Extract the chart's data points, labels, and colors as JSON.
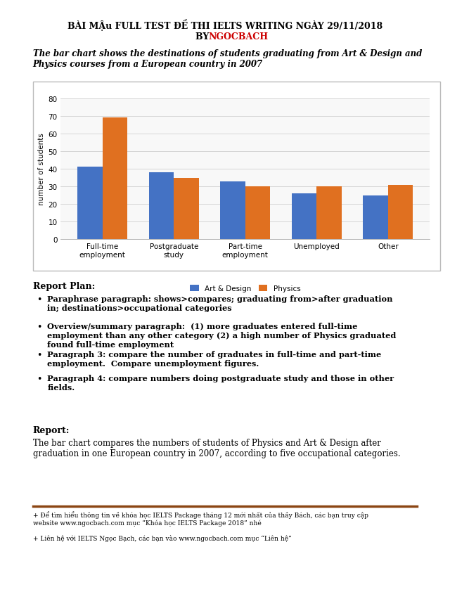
{
  "page_title": "BÀI MẬu FULL TEST ĐỀ THI IELTS WRITING NGÀY 29/11/2018",
  "by_label": "BY ",
  "by_name": "NGOCBACH",
  "chart_subtitle": "The bar chart shows the destinations of students graduating from Art & Design and\nPhysics courses from a European country in 2007",
  "categories": [
    "Full-time\nemployment",
    "Postgraduate\nstudy",
    "Part-time\nemployment",
    "Unemployed",
    "Other"
  ],
  "art_design_values": [
    41,
    38,
    33,
    26,
    25
  ],
  "physics_values": [
    69,
    35,
    30,
    30,
    31
  ],
  "art_design_color": "#4472C4",
  "physics_color": "#E07020",
  "ylabel": "number of students",
  "ylim": [
    0,
    80
  ],
  "yticks": [
    0,
    10,
    20,
    30,
    40,
    50,
    60,
    70,
    80
  ],
  "legend_labels": [
    "Art & Design",
    "Physics"
  ],
  "report_plan_title": "Report Plan:",
  "report_plan_bullets": [
    "Paraphrase paragraph: shows>compares; graduating from>after graduation\nin; destinations>occupational categories",
    "Overview/summary paragraph:  (1) more graduates entered full-time\nemployment than any other category (2) a high number of Physics graduated\nfound full-time employment",
    "Paragraph 3: compare the number of graduates in full-time and part-time\nemployment.  Compare unemployment figures.",
    "Paragraph 4: compare numbers doing postgraduate study and those in other\nfields."
  ],
  "report_title": "Report:",
  "report_text": "The bar chart compares the numbers of students of Physics and Art & Design after\ngraduation in one European country in 2007, according to five occupational categories.",
  "footer_line_color": "#8B4513",
  "footer_text1": "+ Để tìm hiểu thông tin về khóa học IELTS Package tháng 12 mới nhất của thầy Bách, các bạn truy cập\nwebsite www.ngocbach.com mục “Khóa học IELTS Package 2018” nhé",
  "footer_text2": "+ Liên hệ với IELTS Ngọc Bạch, các bạn vào www.ngocbach.com mục “Liên hệ”",
  "background_color": "#ffffff"
}
